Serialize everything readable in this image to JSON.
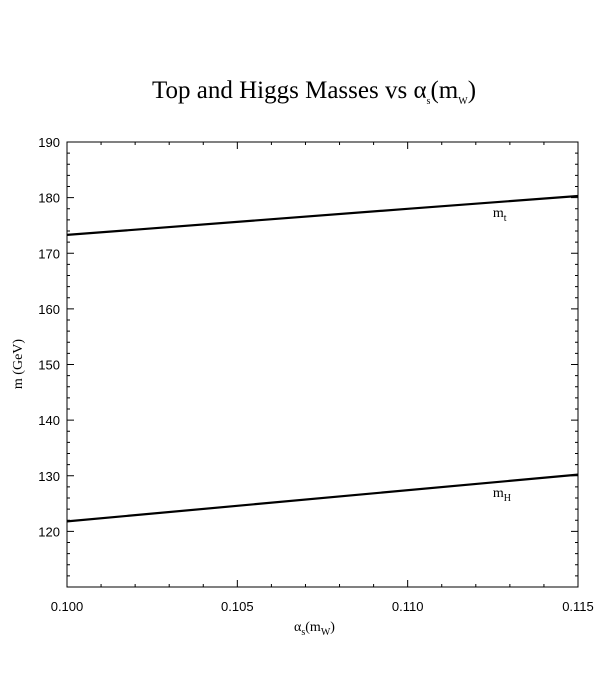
{
  "chart_data": {
    "type": "line",
    "title": {
      "main": "Top and Higgs Masses vs α",
      "sub": "s",
      "paren_open": "(m",
      "paren_sub": "W",
      "paren_close": ")"
    },
    "xlabel": {
      "main": "α",
      "sub": "s",
      "paren_open": "(m",
      "paren_sub": "W",
      "paren_close": ")"
    },
    "ylabel": "m (GeV)",
    "xlim": [
      0.1,
      0.115
    ],
    "ylim": [
      110,
      190
    ],
    "xticks": [
      "0.100",
      "0.105",
      "0.110",
      "0.115"
    ],
    "yticks": [
      "120",
      "130",
      "140",
      "150",
      "160",
      "170",
      "180",
      "190"
    ],
    "grid": false,
    "series": [
      {
        "label_main": "m",
        "label_sub": "t",
        "label_at": [
          0.1125,
          176.5
        ],
        "x": [
          0.1,
          0.11,
          0.115
        ],
        "y": [
          173.3,
          178.0,
          180.3
        ]
      },
      {
        "label_main": "m",
        "label_sub": "H",
        "label_at": [
          0.1125,
          126.2
        ],
        "x": [
          0.1,
          0.115
        ],
        "y": [
          121.8,
          130.2
        ]
      }
    ]
  }
}
